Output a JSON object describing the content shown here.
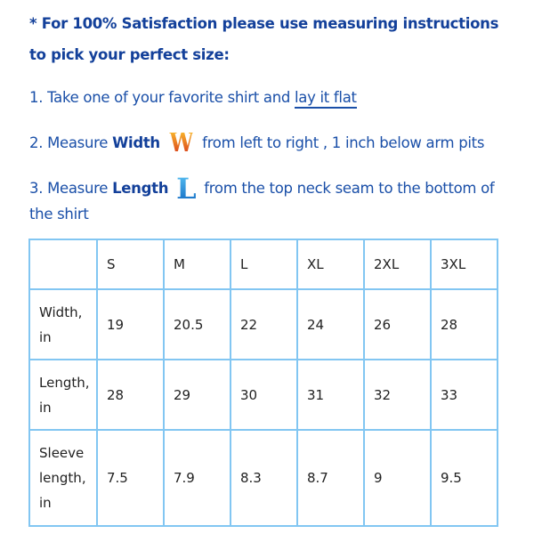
{
  "intro": {
    "line1": "* For 100% Satisfaction please use measuring instructions",
    "line2": "to pick your perfect size:"
  },
  "steps": [
    {
      "prefix": "1. Take one of your favorite shirt and ",
      "link": "lay it flat"
    },
    {
      "prefix": "2. Measure ",
      "bold": "Width",
      "glyph": "W",
      "suffix": " from left to right , 1 inch below arm pits"
    },
    {
      "prefix": "3. Measure ",
      "bold": "Length",
      "glyph": "L",
      "suffix": " from the top neck seam to the bottom of",
      "cont": "the shirt"
    }
  ],
  "table": {
    "headers": [
      "",
      "S",
      "M",
      "L",
      "XL",
      "2XL",
      "3XL"
    ],
    "rows": [
      {
        "label": [
          "Width,",
          "in"
        ],
        "values": [
          "19",
          "20.5",
          "22",
          "24",
          "26",
          "28"
        ]
      },
      {
        "label": [
          "Length,",
          "in"
        ],
        "values": [
          "28",
          "29",
          "30",
          "31",
          "32",
          "33"
        ]
      },
      {
        "label": [
          "Sleeve",
          "length,",
          "in"
        ],
        "values": [
          "7.5",
          "7.9",
          "8.3",
          "8.7",
          "9",
          "9.5"
        ]
      }
    ]
  },
  "colors": {
    "text": "#1a4fa8",
    "table_border": "#82c6f2",
    "width_glyph": "#e0601c",
    "length_glyph": "#2a8ee0"
  }
}
